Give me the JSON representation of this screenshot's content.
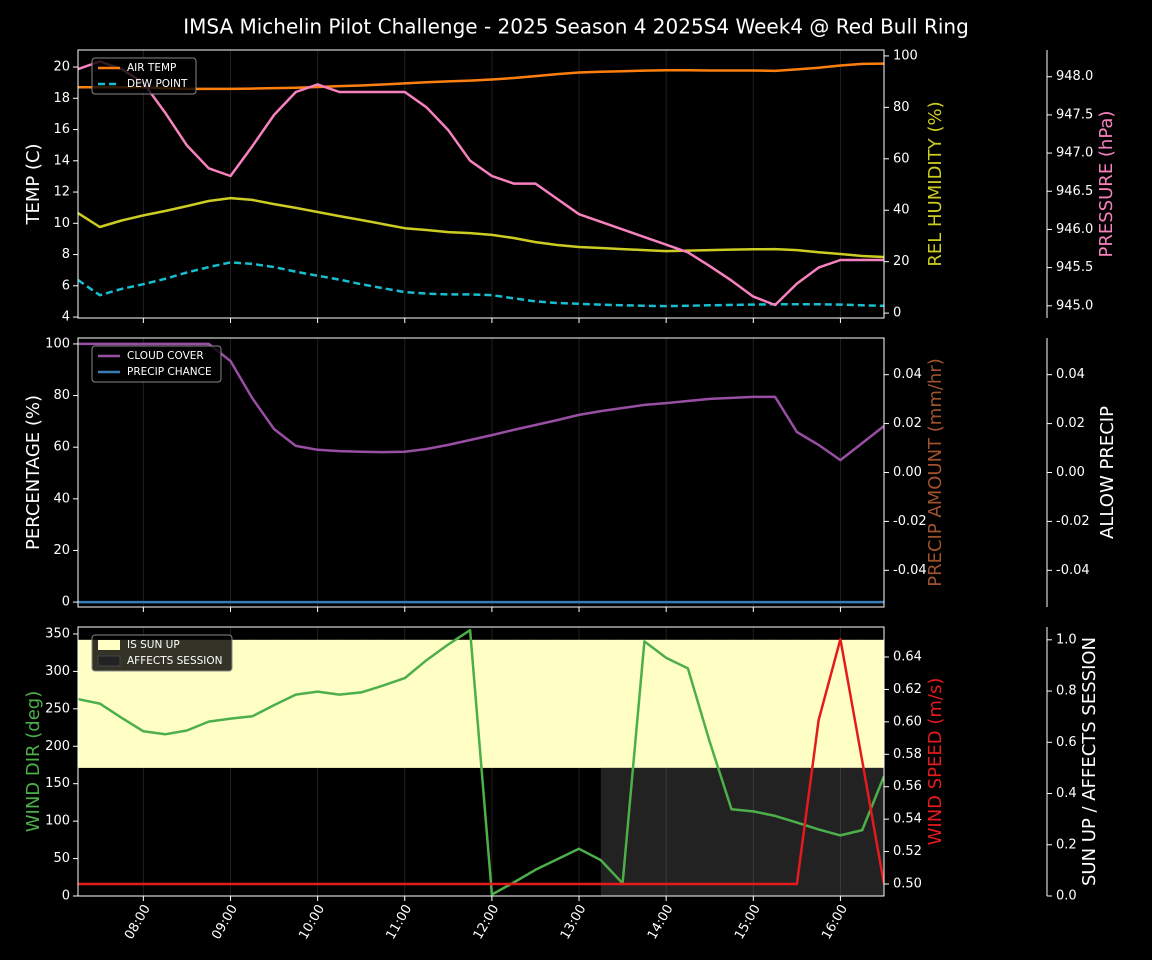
{
  "title": "IMSA Michelin Pilot Challenge - 2025 Season 4 2025S4 Week4 @ Red Bull Ring",
  "chart_data": [
    {
      "type": "line",
      "grid": true,
      "legend": "upper left",
      "x": [
        "07:15",
        "07:30",
        "07:45",
        "08:00",
        "08:15",
        "08:30",
        "08:45",
        "09:00",
        "09:15",
        "09:30",
        "09:45",
        "10:00",
        "10:15",
        "10:30",
        "10:45",
        "11:00",
        "11:15",
        "11:30",
        "11:45",
        "12:00",
        "12:15",
        "12:30",
        "12:45",
        "13:00",
        "13:15",
        "13:30",
        "13:45",
        "14:00",
        "14:15",
        "14:30",
        "14:45",
        "15:00",
        "15:15",
        "15:30",
        "15:45",
        "16:00",
        "16:15",
        "16:30"
      ],
      "xlim": [
        "07:15",
        "16:30"
      ],
      "xticks": [
        "08:00",
        "09:00",
        "10:00",
        "11:00",
        "12:00",
        "13:00",
        "14:00",
        "15:00",
        "16:00"
      ],
      "ylabel": "TEMP (C)",
      "ylabel_color": "#ffffff",
      "ylim": [
        3.94,
        21.09
      ],
      "yticks": [
        4,
        6,
        8,
        10,
        12,
        14,
        16,
        18,
        20
      ],
      "y2label": "REL HUMIDITY (%)",
      "y2label_color": "#cccc22",
      "y2lim": [
        -1.9,
        102.3
      ],
      "y2ticks": [
        0,
        20,
        40,
        60,
        80,
        100
      ],
      "y3label": "PRESSURE (hPa)",
      "y3label_color": "#f781bf",
      "y3lim": [
        944.84,
        948.35
      ],
      "y3ticks": [
        {
          "value": 945,
          "label": "945.0"
        },
        945.5,
        {
          "value": 946,
          "label": "946.0"
        },
        946.5,
        {
          "value": 947,
          "label": "947.0"
        },
        947.5,
        {
          "value": 948,
          "label": "948.0"
        }
      ],
      "series": [
        {
          "name": "AIR TEMP",
          "color": "#ff7f0e",
          "axis": "y",
          "values": [
            18.7,
            18.7,
            18.7,
            18.7,
            18.65,
            18.6,
            18.6,
            18.6,
            18.62,
            18.65,
            18.68,
            18.72,
            18.78,
            18.82,
            18.88,
            18.95,
            19.02,
            19.08,
            19.13,
            19.2,
            19.3,
            19.42,
            19.55,
            19.65,
            19.7,
            19.73,
            19.77,
            19.8,
            19.8,
            19.78,
            19.78,
            19.78,
            19.75,
            19.85,
            19.95,
            20.1,
            20.2,
            20.22
          ]
        },
        {
          "name": "DEW POINT",
          "color": "#17becf",
          "axis": "y",
          "dash": true,
          "values": [
            6.37,
            5.4,
            5.8,
            6.1,
            6.45,
            6.85,
            7.2,
            7.5,
            7.4,
            7.2,
            6.9,
            6.65,
            6.4,
            6.1,
            5.85,
            5.6,
            5.5,
            5.45,
            5.45,
            5.4,
            5.2,
            5.0,
            4.9,
            4.85,
            4.8,
            4.75,
            4.72,
            4.7,
            4.72,
            4.75,
            4.78,
            4.8,
            4.82,
            4.82,
            4.82,
            4.8,
            4.75,
            4.72
          ]
        },
        {
          "color": "#cccc22",
          "axis": "y2",
          "values": [
            38.9,
            33.5,
            36,
            38,
            39.7,
            41.6,
            43.6,
            44.7,
            44,
            42.4,
            40.9,
            39.3,
            37.7,
            36.2,
            34.6,
            33,
            32.3,
            31.5,
            31.1,
            30.4,
            29.2,
            27.6,
            26.5,
            25.7,
            25.3,
            24.9,
            24.5,
            24.1,
            24.3,
            24.5,
            24.7,
            24.8,
            24.9,
            24.5,
            23.7,
            23,
            22.2,
            21.8
          ]
        },
        {
          "color": "#f781bf",
          "axis": "y3",
          "values": [
            948.1,
            948.2,
            948.1,
            947.92,
            947.53,
            947.1,
            946.8,
            946.7,
            947.09,
            947.5,
            947.8,
            947.9,
            947.8,
            947.8,
            947.8,
            947.8,
            947.6,
            947.3,
            946.9,
            946.7,
            946.6,
            946.6,
            946.4,
            946.2,
            946.1,
            946.0,
            945.9,
            945.8,
            945.7,
            945.52,
            945.33,
            945.12,
            945.01,
            945.29,
            945.5,
            945.6,
            945.6,
            945.6
          ]
        }
      ]
    },
    {
      "type": "line",
      "grid": true,
      "legend": "upper left",
      "x": [
        "07:15",
        "07:30",
        "07:45",
        "08:00",
        "08:15",
        "08:30",
        "08:45",
        "09:00",
        "09:15",
        "09:30",
        "09:45",
        "10:00",
        "10:15",
        "10:30",
        "10:45",
        "11:00",
        "11:15",
        "11:30",
        "11:45",
        "12:00",
        "12:15",
        "12:30",
        "12:45",
        "13:00",
        "13:15",
        "13:30",
        "13:45",
        "14:00",
        "14:15",
        "14:30",
        "14:45",
        "15:00",
        "15:15",
        "15:30",
        "15:45",
        "16:00",
        "16:15",
        "16:30"
      ],
      "xlim": [
        "07:15",
        "16:30"
      ],
      "xticks": [
        "08:00",
        "09:00",
        "10:00",
        "11:00",
        "12:00",
        "13:00",
        "14:00",
        "15:00",
        "16:00"
      ],
      "ylabel": "PERCENTAGE (%)",
      "ylabel_color": "#ffffff",
      "ylim": [
        -1.9,
        102.3
      ],
      "yticks": [
        0,
        20,
        40,
        60,
        80,
        100
      ],
      "y2label": "PRECIP AMOUNT (mm/hr)",
      "y2label_color": "#a0522d",
      "y2lim": [
        -0.055,
        0.055
      ],
      "y2ticks": [
        -0.04,
        -0.02,
        {
          "value": 0,
          "label": "0.00"
        },
        0.02,
        0.04
      ],
      "y3label": "ALLOW PRECIP",
      "y3label_color": "#ffffff",
      "y3lim": [
        -0.055,
        0.055
      ],
      "y3ticks": [
        -0.04,
        -0.02,
        {
          "value": 0,
          "label": "0.00"
        },
        0.02,
        0.04
      ],
      "series": [
        {
          "name": "CLOUD COVER",
          "color": "#984ea3",
          "axis": "y",
          "values": [
            100,
            100,
            100,
            100,
            100,
            100,
            100,
            93.4,
            79,
            67,
            60.5,
            59,
            58.5,
            58.2,
            58.1,
            58.2,
            59.3,
            60.9,
            62.8,
            64.7,
            66.7,
            68.6,
            70.5,
            72.5,
            74,
            75.2,
            76.4,
            77.1,
            77.9,
            78.7,
            79.1,
            79.5,
            79.5,
            65.9,
            60.9,
            55,
            61.6,
            68.2
          ]
        },
        {
          "name": "PRECIP CHANCE",
          "color": "#377eb8",
          "axis": "y",
          "values": [
            0,
            0,
            0,
            0,
            0,
            0,
            0,
            0,
            0,
            0,
            0,
            0,
            0,
            0,
            0,
            0,
            0,
            0,
            0,
            0,
            0,
            0,
            0,
            0,
            0,
            0,
            0,
            0,
            0,
            0,
            0,
            0,
            0,
            0,
            0,
            0,
            0,
            0
          ]
        }
      ]
    },
    {
      "type": "line",
      "grid": true,
      "legend": "upper left",
      "x": [
        "07:15",
        "07:30",
        "07:45",
        "08:00",
        "08:15",
        "08:30",
        "08:45",
        "09:00",
        "09:15",
        "09:30",
        "09:45",
        "10:00",
        "10:15",
        "10:30",
        "10:45",
        "11:00",
        "11:15",
        "11:30",
        "11:45",
        "12:00",
        "12:15",
        "12:30",
        "12:45",
        "13:00",
        "13:15",
        "13:30",
        "13:45",
        "14:00",
        "14:15",
        "14:30",
        "14:45",
        "15:00",
        "15:15",
        "15:30",
        "15:45",
        "16:00",
        "16:15",
        "16:30"
      ],
      "xlim": [
        "07:15",
        "16:30"
      ],
      "xticks": [
        "08:00",
        "09:00",
        "10:00",
        "11:00",
        "12:00",
        "13:00",
        "14:00",
        "15:00",
        "16:00"
      ],
      "ylabel": "WIND DIR (deg)",
      "ylabel_color": "#4daf4a",
      "ylim": [
        0,
        359.3
      ],
      "yticks": [
        0,
        50,
        100,
        150,
        200,
        250,
        300,
        350
      ],
      "y2label": "WIND SPEED (m/s)",
      "y2label_color": "#e41a1c",
      "y2lim": [
        0.4926,
        0.6585
      ],
      "y2ticks": [
        {
          "value": 0.5,
          "label": "0.50"
        },
        0.52,
        0.54,
        0.56,
        0.58,
        {
          "value": 0.6,
          "label": "0.60"
        },
        0.62,
        0.64
      ],
      "y3label": "SUN UP / AFFECTS SESSION",
      "y3label_color": "#ffffff",
      "y3lim": [
        0,
        1.05
      ],
      "y3ticks": [
        {
          "value": 0,
          "label": "0.0"
        },
        0.2,
        0.4,
        0.6,
        0.8,
        {
          "value": 1,
          "label": "1.0"
        }
      ],
      "series": [
        {
          "name": "IS SUN UP",
          "color": "#ffffc5",
          "axis": "y3",
          "fill": "upper",
          "values": [
            1,
            1,
            1,
            1,
            1,
            1,
            1,
            1,
            1,
            1,
            1,
            1,
            1,
            1,
            1,
            1,
            1,
            1,
            1,
            1,
            1,
            1,
            1,
            1,
            1,
            1,
            1,
            1,
            1,
            1,
            1,
            1,
            1,
            1,
            1,
            1,
            1,
            1
          ]
        },
        {
          "name": "AFFECTS SESSION",
          "color": "#222222",
          "axis": "y3",
          "fill": "lower",
          "values": [
            0,
            0,
            0,
            0,
            0,
            0,
            0,
            0,
            0,
            0,
            0,
            0,
            0,
            0,
            0,
            0,
            0,
            0,
            0,
            0,
            0,
            0,
            0,
            0,
            1,
            1,
            1,
            1,
            1,
            1,
            1,
            1,
            1,
            1,
            1,
            1,
            1,
            1
          ]
        },
        {
          "color": "#4daf4a",
          "axis": "y",
          "values": [
            263,
            257,
            238,
            220,
            216,
            221,
            233,
            237,
            240,
            255,
            269,
            273,
            269,
            272,
            281,
            291,
            315,
            336,
            355,
            2,
            18,
            35,
            49,
            63,
            48,
            17,
            340,
            318,
            304,
            206,
            116,
            113,
            107,
            98,
            89,
            81,
            88,
            160
          ]
        },
        {
          "color": "#e41a1c",
          "axis": "y2",
          "values": [
            0.5,
            0.5,
            0.5,
            0.5,
            0.5,
            0.5,
            0.5,
            0.5,
            0.5,
            0.5,
            0.5,
            0.5,
            0.5,
            0.5,
            0.5,
            0.5,
            0.5,
            0.5,
            0.5,
            0.5,
            0.5,
            0.5,
            0.5,
            0.5,
            0.5,
            0.5,
            0.5,
            0.5,
            0.5,
            0.5,
            0.5,
            0.5,
            0.5,
            0.5,
            0.601,
            0.651,
            0.576,
            0.5
          ]
        }
      ]
    }
  ]
}
